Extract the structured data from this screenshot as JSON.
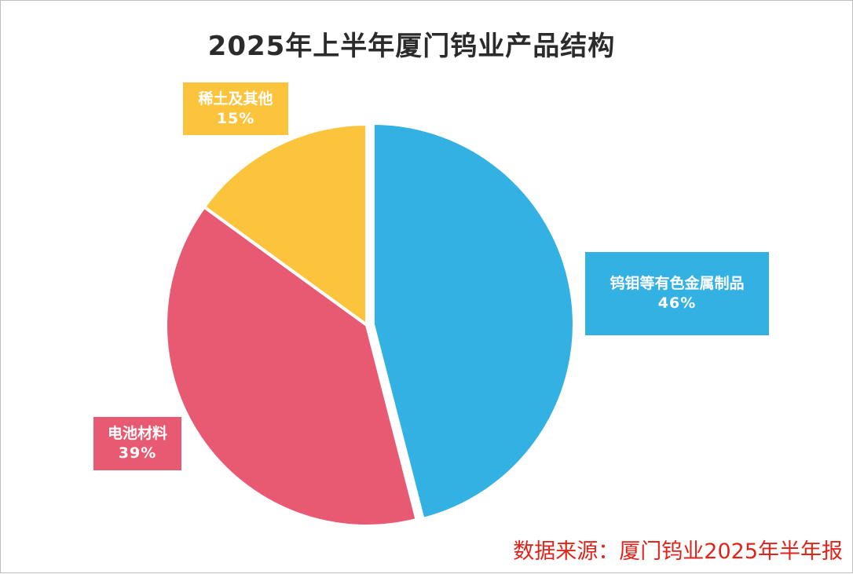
{
  "title": "2025年上半年厦门钨业产品结构",
  "source": "数据来源：厦门钨业2025年半年报",
  "colors": {
    "tungsten": "#33b1e3",
    "battery": "#e75a72",
    "rare_earth": "#fbc43c"
  },
  "chart_data": {
    "type": "pie",
    "title": "2025年上半年厦门钨业产品结构",
    "slices": [
      {
        "name": "钨钼等有色金属制品",
        "value": 46,
        "label": "46%",
        "color": "#33b1e3"
      },
      {
        "name": "电池材料",
        "value": 39,
        "label": "39%",
        "color": "#e75a72"
      },
      {
        "name": "稀土及其他",
        "value": 15,
        "label": "15%",
        "color": "#fbc43c"
      }
    ]
  }
}
